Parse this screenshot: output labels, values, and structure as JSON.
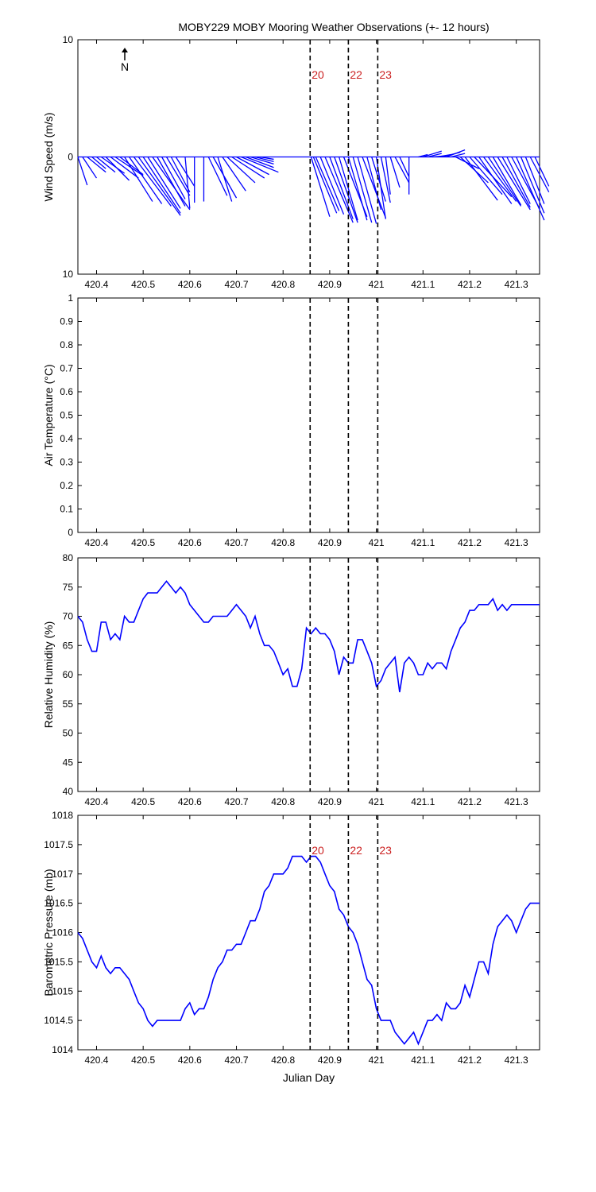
{
  "title": "MOBY229 MOBY Mooring Weather Observations (+- 12 hours)",
  "north_label": "N",
  "colors": {
    "series": "#0000ff",
    "marker_label": "#cc2222",
    "axis": "#000000"
  },
  "markers": {
    "x": [
      420.858,
      420.94,
      421.003
    ],
    "labels": [
      "20",
      "22",
      "23"
    ]
  },
  "chart_data": [
    {
      "type": "vector",
      "ylabel": "Wind Speed (m/s)",
      "xlim": [
        420.36,
        421.35
      ],
      "ylim": [
        -10,
        10
      ],
      "yticks": [
        10,
        0,
        10
      ],
      "xticks": [
        420.4,
        420.5,
        420.6,
        420.7,
        420.8,
        420.9,
        421,
        421.1,
        421.2,
        421.3
      ],
      "marker_labels_shown": true,
      "vectors": [
        {
          "x": 420.36,
          "u": 0.02,
          "v": -2.4
        },
        {
          "x": 420.37,
          "u": 0.03,
          "v": -1.8
        },
        {
          "x": 420.38,
          "u": 0.04,
          "v": -1.3
        },
        {
          "x": 420.39,
          "u": 0.03,
          "v": -1.0
        },
        {
          "x": 420.4,
          "u": 0.04,
          "v": -1.3
        },
        {
          "x": 420.41,
          "u": 0.05,
          "v": -1.4
        },
        {
          "x": 420.42,
          "u": 0.05,
          "v": -2.0
        },
        {
          "x": 420.43,
          "u": 0.06,
          "v": -1.8
        },
        {
          "x": 420.44,
          "u": 0.06,
          "v": -1.6
        },
        {
          "x": 420.45,
          "u": 0.05,
          "v": -1.5
        },
        {
          "x": 420.46,
          "u": 0.06,
          "v": -3.8
        },
        {
          "x": 420.47,
          "u": 0.07,
          "v": -4.0
        },
        {
          "x": 420.48,
          "u": 0.08,
          "v": -4.2
        },
        {
          "x": 420.49,
          "u": 0.09,
          "v": -5.0
        },
        {
          "x": 420.5,
          "u": 0.08,
          "v": -4.8
        },
        {
          "x": 420.51,
          "u": 0.07,
          "v": -4.4
        },
        {
          "x": 420.52,
          "u": 0.08,
          "v": -4.5
        },
        {
          "x": 420.53,
          "u": 0.06,
          "v": -4.2
        },
        {
          "x": 420.54,
          "u": 0.05,
          "v": -3.6
        },
        {
          "x": 420.55,
          "u": 0.05,
          "v": -3.3
        },
        {
          "x": 420.56,
          "u": 0.04,
          "v": -3.0
        },
        {
          "x": 420.57,
          "u": 0.04,
          "v": -2.5
        },
        {
          "x": 420.59,
          "u": 0.01,
          "v": -4.4
        },
        {
          "x": 420.61,
          "u": 0.0,
          "v": -3.9
        },
        {
          "x": 420.63,
          "u": 0.0,
          "v": -3.8
        },
        {
          "x": 420.64,
          "u": 0.04,
          "v": -3.3
        },
        {
          "x": 420.65,
          "u": 0.05,
          "v": -3.5
        },
        {
          "x": 420.66,
          "u": 0.03,
          "v": -3.8
        },
        {
          "x": 420.67,
          "u": 0.05,
          "v": -2.9
        },
        {
          "x": 420.68,
          "u": 0.06,
          "v": -2.2
        },
        {
          "x": 420.69,
          "u": 0.07,
          "v": -1.8
        },
        {
          "x": 420.7,
          "u": 0.07,
          "v": -1.5
        },
        {
          "x": 420.71,
          "u": 0.08,
          "v": -1.3
        },
        {
          "x": 420.72,
          "u": 0.06,
          "v": -0.9
        },
        {
          "x": 420.73,
          "u": 0.05,
          "v": -0.6
        },
        {
          "x": 420.74,
          "u": 0.04,
          "v": -0.4
        },
        {
          "x": 420.75,
          "u": 0.03,
          "v": -0.2
        },
        {
          "x": 420.86,
          "u": 0.04,
          "v": -5.1
        },
        {
          "x": 420.865,
          "u": 0.05,
          "v": -4.8
        },
        {
          "x": 420.87,
          "u": 0.05,
          "v": -4.6
        },
        {
          "x": 420.88,
          "u": 0.05,
          "v": -4.9
        },
        {
          "x": 420.89,
          "u": 0.06,
          "v": -5.6
        },
        {
          "x": 420.9,
          "u": 0.05,
          "v": -5.3
        },
        {
          "x": 420.91,
          "u": 0.05,
          "v": -5.6
        },
        {
          "x": 420.92,
          "u": 0.04,
          "v": -5.4
        },
        {
          "x": 420.93,
          "u": 0.05,
          "v": -5.1
        },
        {
          "x": 420.94,
          "u": 0.04,
          "v": -5.4
        },
        {
          "x": 420.95,
          "u": 0.04,
          "v": -5.6
        },
        {
          "x": 420.96,
          "u": 0.04,
          "v": -5.7
        },
        {
          "x": 420.97,
          "u": 0.05,
          "v": -5.2
        },
        {
          "x": 420.98,
          "u": 0.03,
          "v": -4.5
        },
        {
          "x": 420.99,
          "u": 0.03,
          "v": -3.8
        },
        {
          "x": 421.0,
          "u": 0.02,
          "v": -5.3
        },
        {
          "x": 421.01,
          "u": 0.02,
          "v": -3.9
        },
        {
          "x": 421.02,
          "u": 0.01,
          "v": -3.2
        },
        {
          "x": 421.03,
          "u": 0.02,
          "v": -2.6
        },
        {
          "x": 421.04,
          "u": 0.03,
          "v": -2.2
        },
        {
          "x": 421.05,
          "u": 0.02,
          "v": -1.7
        },
        {
          "x": 421.07,
          "u": 0.0,
          "v": -3.2
        },
        {
          "x": 421.09,
          "u": 0.02,
          "v": 0.2
        },
        {
          "x": 421.1,
          "u": 0.04,
          "v": 0.5
        },
        {
          "x": 421.11,
          "u": 0.03,
          "v": 0.3
        },
        {
          "x": 421.12,
          "u": 0.03,
          "v": 0.1
        },
        {
          "x": 421.13,
          "u": 0.03,
          "v": 0.2
        },
        {
          "x": 421.14,
          "u": 0.04,
          "v": 0.4
        },
        {
          "x": 421.15,
          "u": 0.04,
          "v": 0.6
        },
        {
          "x": 421.16,
          "u": 0.03,
          "v": 0.3
        },
        {
          "x": 421.17,
          "u": 0.05,
          "v": -1.0
        },
        {
          "x": 421.18,
          "u": 0.06,
          "v": -2.2
        },
        {
          "x": 421.19,
          "u": 0.07,
          "v": -3.7
        },
        {
          "x": 421.2,
          "u": 0.07,
          "v": -3.2
        },
        {
          "x": 421.21,
          "u": 0.08,
          "v": -3.4
        },
        {
          "x": 421.22,
          "u": 0.07,
          "v": -4.0
        },
        {
          "x": 421.23,
          "u": 0.07,
          "v": -3.8
        },
        {
          "x": 421.24,
          "u": 0.07,
          "v": -4.2
        },
        {
          "x": 421.25,
          "u": 0.06,
          "v": -4.1
        },
        {
          "x": 421.26,
          "u": 0.07,
          "v": -4.5
        },
        {
          "x": 421.27,
          "u": 0.06,
          "v": -4.3
        },
        {
          "x": 421.28,
          "u": 0.05,
          "v": -4.0
        },
        {
          "x": 421.29,
          "u": 0.06,
          "v": -4.4
        },
        {
          "x": 421.3,
          "u": 0.06,
          "v": -5.4
        },
        {
          "x": 421.31,
          "u": 0.05,
          "v": -4.8
        },
        {
          "x": 421.32,
          "u": 0.04,
          "v": -4.0
        },
        {
          "x": 421.33,
          "u": 0.04,
          "v": -3.0
        },
        {
          "x": 421.34,
          "u": 0.03,
          "v": -2.5
        }
      ]
    },
    {
      "type": "line",
      "ylabel": "Air Temperature (°C)",
      "xlim": [
        420.36,
        421.35
      ],
      "ylim": [
        0,
        1
      ],
      "yticks": [
        0,
        0.1,
        0.2,
        0.3,
        0.4,
        0.5,
        0.6,
        0.7,
        0.8,
        0.9,
        1
      ],
      "xticks": [
        420.4,
        420.5,
        420.6,
        420.7,
        420.8,
        420.9,
        421,
        421.1,
        421.2,
        421.3
      ],
      "marker_labels_shown": false,
      "x": [],
      "y": []
    },
    {
      "type": "line",
      "ylabel": "Relative Humidity (%)",
      "xlim": [
        420.36,
        421.35
      ],
      "ylim": [
        40,
        80
      ],
      "yticks": [
        40,
        45,
        50,
        55,
        60,
        65,
        70,
        75,
        80
      ],
      "xticks": [
        420.4,
        420.5,
        420.6,
        420.7,
        420.8,
        420.9,
        421,
        421.1,
        421.2,
        421.3
      ],
      "marker_labels_shown": false,
      "x": [
        420.36,
        420.37,
        420.38,
        420.39,
        420.4,
        420.41,
        420.42,
        420.43,
        420.44,
        420.45,
        420.46,
        420.47,
        420.48,
        420.49,
        420.5,
        420.51,
        420.52,
        420.53,
        420.54,
        420.55,
        420.56,
        420.57,
        420.58,
        420.59,
        420.6,
        420.61,
        420.62,
        420.63,
        420.64,
        420.65,
        420.66,
        420.67,
        420.68,
        420.69,
        420.7,
        420.71,
        420.72,
        420.73,
        420.74,
        420.75,
        420.76,
        420.77,
        420.78,
        420.79,
        420.8,
        420.81,
        420.82,
        420.83,
        420.84,
        420.85,
        420.86,
        420.87,
        420.88,
        420.89,
        420.9,
        420.91,
        420.92,
        420.93,
        420.94,
        420.95,
        420.96,
        420.97,
        420.98,
        420.99,
        421.0,
        421.01,
        421.02,
        421.03,
        421.04,
        421.05,
        421.06,
        421.07,
        421.08,
        421.09,
        421.1,
        421.11,
        421.12,
        421.13,
        421.14,
        421.15,
        421.16,
        421.17,
        421.18,
        421.19,
        421.2,
        421.21,
        421.22,
        421.23,
        421.24,
        421.25,
        421.26,
        421.27,
        421.28,
        421.29,
        421.3,
        421.31,
        421.32,
        421.33,
        421.34,
        421.35
      ],
      "y": [
        70,
        69,
        66,
        64,
        64,
        69,
        69,
        66,
        67,
        66,
        70,
        69,
        69,
        71,
        73,
        74,
        74,
        74,
        75,
        76,
        75,
        74,
        75,
        74,
        72,
        71,
        70,
        69,
        69,
        70,
        70,
        70,
        70,
        71,
        72,
        71,
        70,
        68,
        70,
        67,
        65,
        65,
        64,
        62,
        60,
        61,
        58,
        58,
        61,
        68,
        67,
        68,
        67,
        67,
        66,
        64,
        60,
        63,
        62,
        62,
        66,
        66,
        64,
        62,
        58,
        59,
        61,
        62,
        63,
        57,
        62,
        63,
        62,
        60,
        60,
        62,
        61,
        62,
        62,
        61,
        64,
        66,
        68,
        69,
        71,
        71,
        72,
        72,
        72,
        73,
        71,
        72,
        71,
        72,
        72,
        72,
        72,
        72,
        72,
        72
      ]
    },
    {
      "type": "line",
      "ylabel": "Barometric Pressure (mb)",
      "xlabel": "Julian Day",
      "xlim": [
        420.36,
        421.35
      ],
      "ylim": [
        1014,
        1018
      ],
      "yticks": [
        1014,
        1014.5,
        1015,
        1015.5,
        1016,
        1016.5,
        1017,
        1017.5,
        1018
      ],
      "xticks": [
        420.4,
        420.5,
        420.6,
        420.7,
        420.8,
        420.9,
        421,
        421.1,
        421.2,
        421.3
      ],
      "marker_labels_shown": true,
      "x": [
        420.36,
        420.37,
        420.38,
        420.39,
        420.4,
        420.41,
        420.42,
        420.43,
        420.44,
        420.45,
        420.46,
        420.47,
        420.48,
        420.49,
        420.5,
        420.51,
        420.52,
        420.53,
        420.54,
        420.55,
        420.56,
        420.57,
        420.58,
        420.59,
        420.6,
        420.61,
        420.62,
        420.63,
        420.64,
        420.65,
        420.66,
        420.67,
        420.68,
        420.69,
        420.7,
        420.71,
        420.72,
        420.73,
        420.74,
        420.75,
        420.76,
        420.77,
        420.78,
        420.79,
        420.8,
        420.81,
        420.82,
        420.83,
        420.84,
        420.85,
        420.86,
        420.87,
        420.88,
        420.89,
        420.9,
        420.91,
        420.92,
        420.93,
        420.94,
        420.95,
        420.96,
        420.97,
        420.98,
        420.99,
        421.0,
        421.01,
        421.02,
        421.03,
        421.04,
        421.05,
        421.06,
        421.07,
        421.08,
        421.09,
        421.1,
        421.11,
        421.12,
        421.13,
        421.14,
        421.15,
        421.16,
        421.17,
        421.18,
        421.19,
        421.2,
        421.21,
        421.22,
        421.23,
        421.24,
        421.25,
        421.26,
        421.27,
        421.28,
        421.29,
        421.3,
        421.31,
        421.32,
        421.33,
        421.34,
        421.35
      ],
      "y": [
        1016,
        1015.9,
        1015.7,
        1015.5,
        1015.4,
        1015.6,
        1015.4,
        1015.3,
        1015.4,
        1015.4,
        1015.3,
        1015.2,
        1015.0,
        1014.8,
        1014.7,
        1014.5,
        1014.4,
        1014.5,
        1014.5,
        1014.5,
        1014.5,
        1014.5,
        1014.5,
        1014.7,
        1014.8,
        1014.6,
        1014.7,
        1014.7,
        1014.9,
        1015.2,
        1015.4,
        1015.5,
        1015.7,
        1015.7,
        1015.8,
        1015.8,
        1016.0,
        1016.2,
        1016.2,
        1016.4,
        1016.7,
        1016.8,
        1017.0,
        1017.0,
        1017.0,
        1017.1,
        1017.3,
        1017.3,
        1017.3,
        1017.2,
        1017.3,
        1017.3,
        1017.2,
        1017.0,
        1016.8,
        1016.7,
        1016.4,
        1016.3,
        1016.1,
        1016.0,
        1015.8,
        1015.5,
        1015.2,
        1015.1,
        1014.7,
        1014.5,
        1014.5,
        1014.5,
        1014.3,
        1014.2,
        1014.1,
        1014.2,
        1014.3,
        1014.1,
        1014.3,
        1014.5,
        1014.5,
        1014.6,
        1014.5,
        1014.8,
        1014.7,
        1014.7,
        1014.8,
        1015.1,
        1014.9,
        1015.2,
        1015.5,
        1015.5,
        1015.3,
        1015.8,
        1016.1,
        1016.2,
        1016.3,
        1016.2,
        1016.0,
        1016.2,
        1016.4,
        1016.5,
        1016.5,
        1016.5
      ]
    }
  ]
}
